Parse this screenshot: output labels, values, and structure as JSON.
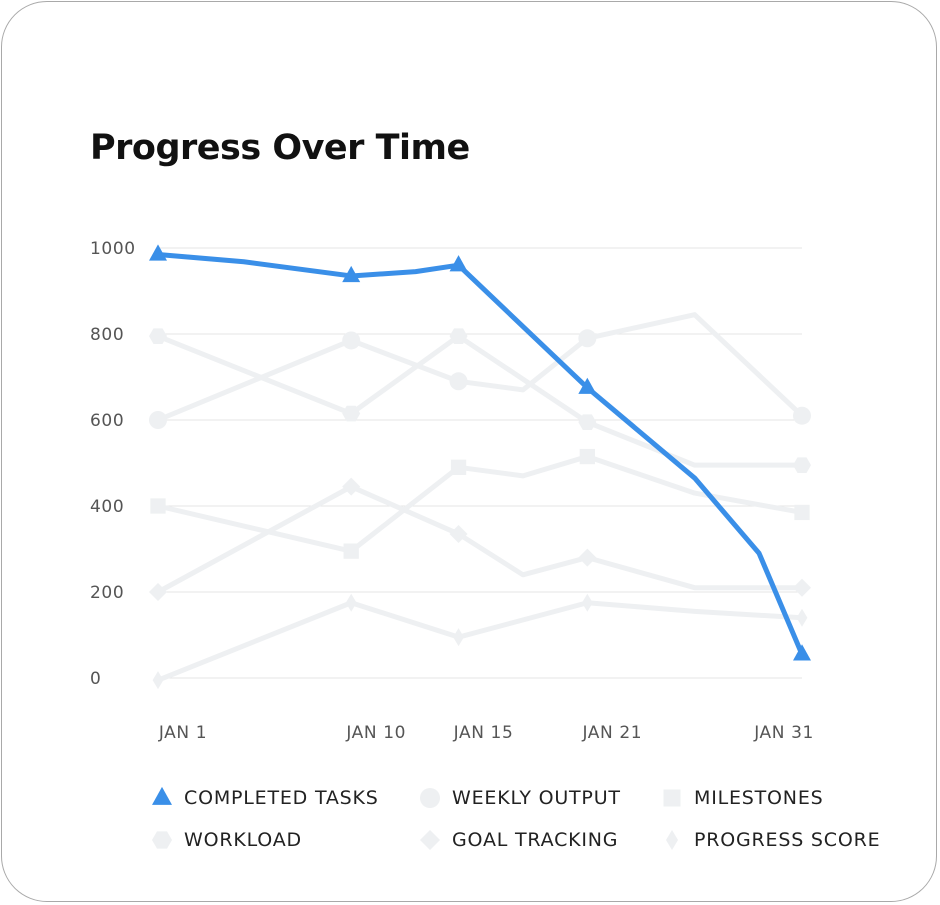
{
  "title": "Progress Over Time",
  "colors": {
    "accent": "#3a8fe8",
    "muted": "#eef0f2",
    "grid": "#e6e6e6"
  },
  "chart_data": {
    "type": "line",
    "title": "Progress Over Time",
    "xlabel": "",
    "ylabel": "",
    "ylim": [
      0,
      1000
    ],
    "yticks": [
      0,
      200,
      400,
      600,
      800,
      1000
    ],
    "xticks": [
      "JAN 1",
      "JAN 10",
      "JAN 15",
      "JAN 21",
      "JAN 31"
    ],
    "x": [
      "2023-01-01",
      "2023-01-05",
      "2023-01-10",
      "2023-01-13",
      "2023-01-15",
      "2023-01-18",
      "2023-01-21",
      "2023-01-26",
      "2023-01-29",
      "2023-01-31"
    ],
    "grid": true,
    "legend_position": "bottom",
    "series": [
      {
        "name": "COMPLETED TASKS",
        "marker": "triangle",
        "highlight": true,
        "values": [
          985,
          968,
          935,
          945,
          960,
          null,
          675,
          465,
          290,
          55
        ]
      },
      {
        "name": "WEEKLY OUTPUT",
        "marker": "circle",
        "values": [
          600,
          null,
          785,
          null,
          690,
          670,
          790,
          845,
          null,
          610
        ]
      },
      {
        "name": "MILESTONES",
        "marker": "square",
        "values": [
          400,
          null,
          295,
          null,
          490,
          470,
          515,
          430,
          null,
          385
        ]
      },
      {
        "name": "WORKLOAD",
        "marker": "hexagon",
        "values": [
          795,
          null,
          615,
          null,
          795,
          null,
          595,
          495,
          null,
          495
        ]
      },
      {
        "name": "GOAL TRACKING",
        "marker": "diamond",
        "values": [
          200,
          null,
          445,
          null,
          335,
          240,
          280,
          210,
          null,
          210
        ]
      },
      {
        "name": "PROGRESS SCORE",
        "marker": "thin-diamond",
        "values": [
          -5,
          null,
          175,
          null,
          95,
          null,
          175,
          155,
          null,
          140
        ]
      }
    ]
  }
}
